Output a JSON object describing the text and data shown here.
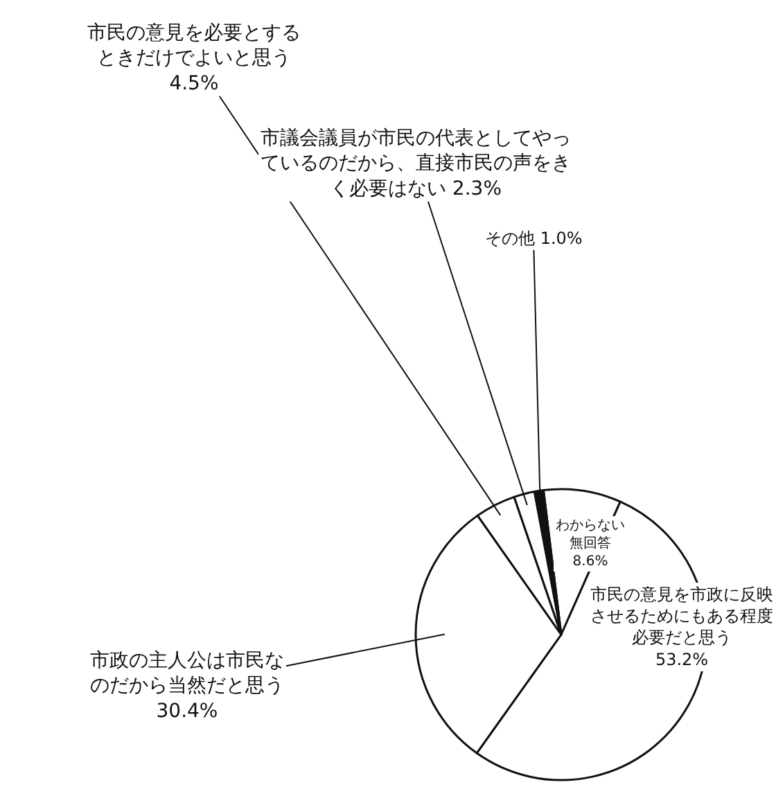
{
  "chart_data": {
    "type": "pie",
    "categories": [
      "わからない無回答",
      "市民の意見を市政に反映させるためにもある程度必要だと思う",
      "市政の主人公は市民なのだから当然だと思う",
      "市民の意見を必要とするときだけでよいと思う",
      "市議会議員が市民の代表としてやっているのだから、直接市民の声をきく必要はない",
      "その他"
    ],
    "values": [
      8.6,
      53.2,
      30.4,
      4.5,
      2.3,
      1.0
    ],
    "value_labels": [
      "8.6%",
      "53.2%",
      "30.4%",
      "4.5%",
      "2.3%",
      "1.0%"
    ],
    "colors": [
      "#ffffff",
      "#ffffff",
      "#ffffff",
      "#ffffff",
      "#ffffff",
      "#111111"
    ],
    "legend": false
  }
}
